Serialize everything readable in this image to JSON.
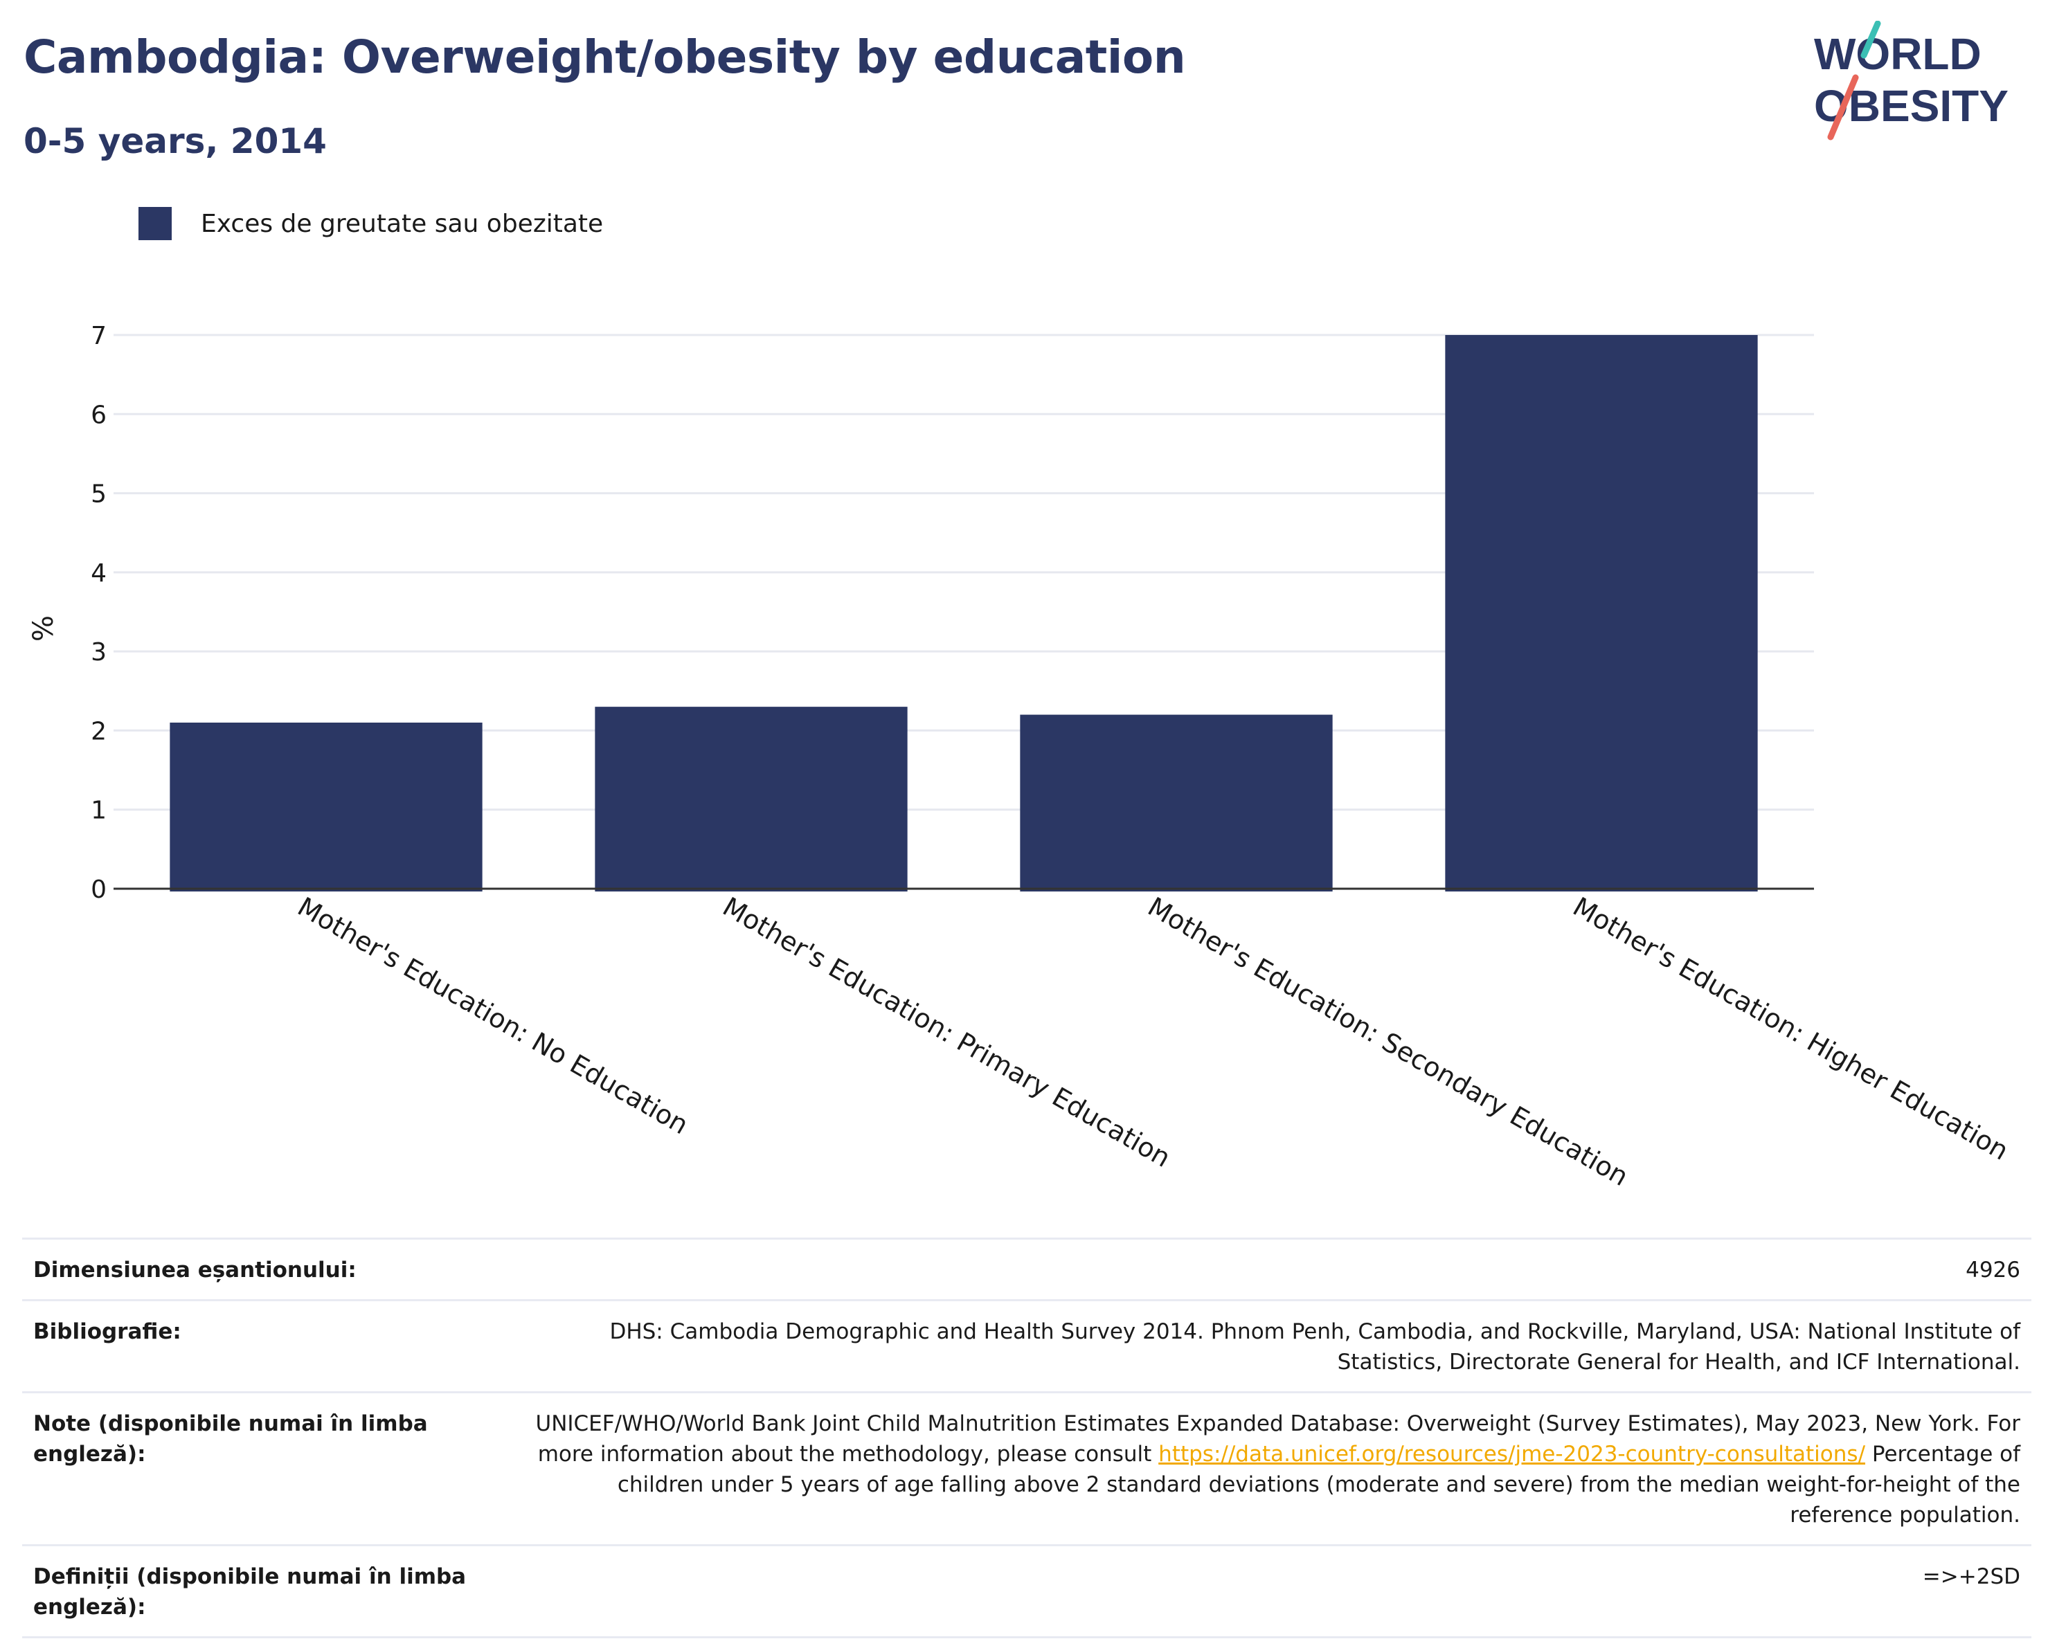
{
  "header": {
    "title": "Cambodgia: Overweight/obesity by education",
    "subtitle": "0-5 years, 2014"
  },
  "logo": {
    "line1": "WORLD",
    "line2": "OBESITY",
    "colors": {
      "text": "#2b3764",
      "slash_top": "#3bbfb4",
      "slash_bottom": "#e8665a"
    }
  },
  "colors": {
    "bar": "#2b3764",
    "grid": "#e6e8ef",
    "axis": "#333333",
    "link": "#f2a900"
  },
  "chart_data": {
    "type": "bar",
    "categories": [
      "Mother's Education: No Education",
      "Mother's Education: Primary Education",
      "Mother's Education: Secondary Education",
      "Mother's Education: Higher Education"
    ],
    "series": [
      {
        "name": "Exces de greutate sau obezitate",
        "values": [
          2.1,
          2.3,
          2.2,
          7.0
        ]
      }
    ],
    "ylabel": "%",
    "ylim": [
      0,
      7
    ],
    "yticks": [
      0,
      1,
      2,
      3,
      4,
      5,
      6,
      7
    ],
    "grid": true,
    "legend": "top-left"
  },
  "meta": {
    "sample_label": "Dimensiunea eșantionului:",
    "sample_value": "4926",
    "bib_label": "Bibliografie:",
    "bib_value": "DHS: Cambodia Demographic and Health Survey 2014. Phnom Penh, Cambodia, and Rockville, Maryland, USA: National Institute of Statistics, Directorate General for Health, and ICF International.",
    "notes_label": "Note (disponibile numai în limba engleză):",
    "notes_text1": "UNICEF/WHO/World Bank Joint Child Malnutrition Estimates Expanded Database: Overweight (Survey Estimates), May 2023, New York. For more information about the methodology, please consult ",
    "notes_link": "https://data.unicef.org/resources/jme-2023-country-consultations/",
    "notes_text2": " Percentage of children under 5 years of age falling above 2 standard deviations (moderate and severe) from the median weight-for-height of the reference population.",
    "defs_label": "Definiții (disponibile numai în limba engleză):",
    "defs_value": "=>+2SD"
  }
}
